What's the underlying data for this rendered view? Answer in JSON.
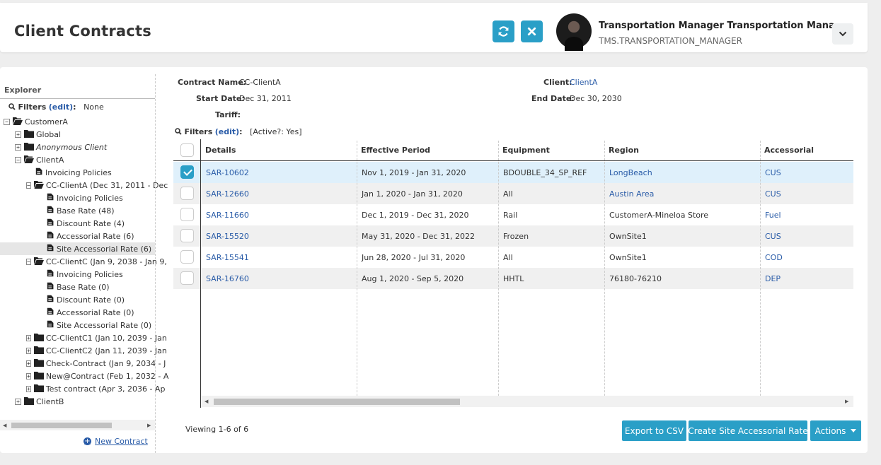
{
  "header": {
    "title": "Client Contracts",
    "refresh_icon": "refresh-icon",
    "close_icon": "close-icon",
    "user_name": "Transportation Manager Transportation Mana...",
    "user_login": "TMS.TRANSPORTATION_MANAGER",
    "menu_icon": "chevron-down-icon"
  },
  "explorer": {
    "title": "Explorer",
    "filters_label": "Filters",
    "filters_edit": "(edit)",
    "filters_colon": ":",
    "filters_value": "None",
    "new_contract": "New Contract",
    "tree": [
      {
        "label": "CustomerA",
        "toggle": "-",
        "icon": "folder-open"
      },
      {
        "label": "Global",
        "toggle": "+",
        "icon": "folder"
      },
      {
        "label": "Anonymous Client",
        "toggle": "+",
        "icon": "folder",
        "italic": true
      },
      {
        "label": "ClientA",
        "toggle": "-",
        "icon": "folder-open"
      },
      {
        "label": "Invoicing Policies",
        "toggle": "",
        "icon": "document"
      },
      {
        "label": "CC-ClientA (Dec 31, 2011 - Dec",
        "toggle": "-",
        "icon": "folder-open"
      },
      {
        "label": "Invoicing Policies",
        "toggle": "",
        "icon": "document"
      },
      {
        "label": "Base Rate (48)",
        "toggle": "",
        "icon": "document"
      },
      {
        "label": "Discount Rate (4)",
        "toggle": "",
        "icon": "document"
      },
      {
        "label": "Accessorial Rate (6)",
        "toggle": "",
        "icon": "document"
      },
      {
        "label": "Site Accessorial Rate (6)",
        "toggle": "",
        "icon": "document",
        "selected": true
      },
      {
        "label": "CC-ClientC (Jan 9, 2038 - Jan 9,",
        "toggle": "-",
        "icon": "folder-open"
      },
      {
        "label": "Invoicing Policies",
        "toggle": "",
        "icon": "document"
      },
      {
        "label": "Base Rate (0)",
        "toggle": "",
        "icon": "document"
      },
      {
        "label": "Discount Rate (0)",
        "toggle": "",
        "icon": "document"
      },
      {
        "label": "Accessorial Rate (0)",
        "toggle": "",
        "icon": "document"
      },
      {
        "label": "Site Accessorial Rate (0)",
        "toggle": "",
        "icon": "document"
      },
      {
        "label": "CC-ClientC1 (Jan 10, 2039 - Jan",
        "toggle": "+",
        "icon": "folder"
      },
      {
        "label": "CC-ClientC2 (Jan 11, 2039 - Jan",
        "toggle": "+",
        "icon": "folder"
      },
      {
        "label": "Check-Contract (Jan 9, 2034 - J",
        "toggle": "+",
        "icon": "folder"
      },
      {
        "label": "New@Contract (Feb 1, 2032 - A",
        "toggle": "+",
        "icon": "folder"
      },
      {
        "label": "Test contract (Apr 3, 2036 - Ap",
        "toggle": "+",
        "icon": "folder"
      },
      {
        "label": "ClientB",
        "toggle": "+",
        "icon": "folder"
      }
    ]
  },
  "contract": {
    "name_label": "Contract Name:",
    "name_value": "CC-ClientA",
    "client_label": "Client:",
    "client_value": "ClientA",
    "start_label": "Start Date:",
    "start_value": "Dec 31, 2011",
    "end_label": "End Date:",
    "end_value": "Dec 30, 2030",
    "tariff_label": "Tariff:",
    "tariff_value": ""
  },
  "grid_filters": {
    "label": "Filters",
    "edit": "(edit)",
    "colon": ":",
    "value": "[Active?: Yes]"
  },
  "grid": {
    "columns": [
      "Details",
      "Effective Period",
      "Equipment",
      "Region",
      "Accessorial"
    ],
    "rows": [
      {
        "checked": true,
        "details": "SAR-10602",
        "period": "Nov 1, 2019 - Jan 31, 2020",
        "equipment": "BDOUBLE_34_SP_REF",
        "region": "LongBeach",
        "region_link": true,
        "accessorial": "CUS"
      },
      {
        "checked": false,
        "details": "SAR-12660",
        "period": "Jan 1, 2020 - Jan 31, 2020",
        "equipment": "All",
        "region": "Austin Area",
        "region_link": true,
        "accessorial": "CUS"
      },
      {
        "checked": false,
        "details": "SAR-11660",
        "period": "Dec 1, 2019 - Dec 31, 2020",
        "equipment": "Rail",
        "region": "CustomerA-Mineloa Store",
        "region_link": false,
        "accessorial": "Fuel"
      },
      {
        "checked": false,
        "details": "SAR-15520",
        "period": "May 31, 2020 - Dec 31, 2022",
        "equipment": "Frozen",
        "region": "OwnSite1",
        "region_link": false,
        "accessorial": "CUS"
      },
      {
        "checked": false,
        "details": "SAR-15541",
        "period": "Jun 28, 2020 - Jul 31, 2020",
        "equipment": "All",
        "region": "OwnSite1",
        "region_link": false,
        "accessorial": "COD"
      },
      {
        "checked": false,
        "details": "SAR-16760",
        "period": "Aug 1, 2020 - Sep 5, 2020",
        "equipment": "HHTL",
        "region": "76180-76210",
        "region_link": false,
        "accessorial": "DEP"
      }
    ]
  },
  "footer": {
    "viewing": "Viewing 1-6 of 6",
    "export_csv": "Export to CSV",
    "create_rate": "Create Site Accessorial Rate",
    "actions": "Actions"
  },
  "colors": {
    "accent": "#2a9fc7",
    "link": "#2a5ca8",
    "selected_row": "#dff0fb"
  }
}
